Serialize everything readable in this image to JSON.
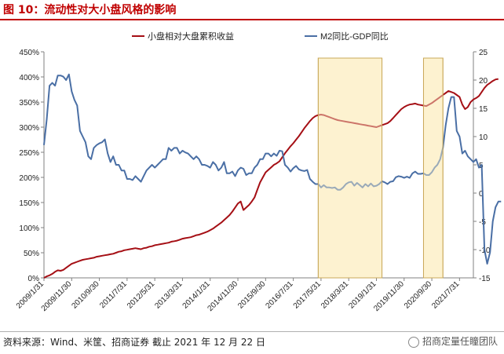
{
  "figure": {
    "title": "图 10：流动性对大小盘风格的影响",
    "source": "资料来源：Wind、米筐、招商证券 截止 2021 年 12 月 22 日",
    "watermark": "招商定量任瞳团队"
  },
  "colors": {
    "title": "#c00000",
    "smallcap": "#a50f15",
    "m2": "#4a6fa5",
    "highlight_fill": "#fdf2d0",
    "highlight_stroke": "#c9a85a"
  },
  "chart_data": {
    "type": "line",
    "x_tick_labels": [
      "2009/1/31",
      "2009/11/30",
      "2010/9/30",
      "2011/7/31",
      "2012/5/31",
      "2013/3/31",
      "2014/1/31",
      "2014/11/30",
      "2015/9/30",
      "2016/7/31",
      "2017/5/31",
      "2018/3/31",
      "2019/1/31",
      "2019/11/30",
      "2020/9/30",
      "2021/7/31"
    ],
    "y_left": {
      "ticks": [
        "0%",
        "50%",
        "100%",
        "150%",
        "200%",
        "250%",
        "300%",
        "350%",
        "400%",
        "450%"
      ],
      "min": 0,
      "max": 450
    },
    "y_right": {
      "ticks": [
        "-15",
        "-10",
        "-5",
        "0",
        "5",
        "10",
        "15",
        "20",
        "25"
      ],
      "min": -15,
      "max": 25
    },
    "highlight_periods": [
      {
        "start": "2017/4",
        "end": "2019/3"
      },
      {
        "start": "2020/6",
        "end": "2021/1"
      }
    ],
    "series": [
      {
        "name": "小盘相对大盘累积收益",
        "axis": "left",
        "x_start": "2009/1",
        "values": [
          0,
          3,
          5,
          8,
          12,
          15,
          14,
          16,
          20,
          24,
          28,
          30,
          32,
          34,
          36,
          37,
          38,
          39,
          40,
          42,
          43,
          44,
          45,
          46,
          47,
          48,
          50,
          52,
          53,
          55,
          56,
          57,
          58,
          59,
          58,
          57,
          59,
          60,
          62,
          63,
          65,
          66,
          67,
          68,
          69,
          70,
          72,
          73,
          74,
          76,
          78,
          79,
          80,
          81,
          83,
          85,
          86,
          88,
          90,
          92,
          95,
          98,
          102,
          106,
          110,
          115,
          120,
          125,
          132,
          140,
          148,
          152,
          135,
          140,
          145,
          152,
          160,
          175,
          190,
          200,
          210,
          215,
          220,
          225,
          228,
          232,
          240,
          248,
          255,
          262,
          268,
          275,
          282,
          290,
          298,
          305,
          312,
          318,
          322,
          324,
          325,
          324,
          322,
          320,
          318,
          316,
          314,
          313,
          312,
          311,
          310,
          309,
          308,
          307,
          306,
          305,
          304,
          303,
          302,
          301,
          300,
          302,
          304,
          306,
          308,
          312,
          318,
          324,
          330,
          336,
          340,
          343,
          345,
          346,
          347,
          345,
          344,
          343,
          342,
          345,
          348,
          352,
          356,
          360,
          364,
          368,
          372,
          370,
          368,
          364,
          360,
          345,
          336,
          340,
          350,
          355,
          358,
          362,
          370,
          378,
          384,
          388,
          392,
          395,
          396
        ]
      },
      {
        "name": "M2同比-GDP同比",
        "axis": "right",
        "x_start": "2009/1",
        "values": [
          8.5,
          13,
          19,
          19.5,
          19,
          20.8,
          20.8,
          20.6,
          20,
          21,
          18,
          16.5,
          15.5,
          11,
          10,
          9,
          6.5,
          6,
          8,
          8.5,
          8.8,
          9,
          9.5,
          7,
          5.5,
          6.5,
          5,
          5,
          4,
          4,
          2.5,
          2.5,
          2.3,
          3,
          2.5,
          2,
          3,
          4,
          4.5,
          5,
          4.5,
          5,
          5.5,
          6,
          6,
          8,
          7.5,
          8,
          8,
          7,
          7.5,
          7.2,
          7,
          6.5,
          6,
          6.5,
          6,
          5,
          5,
          4.8,
          4.5,
          5.5,
          5,
          4,
          4.5,
          5.5,
          3.5,
          3.5,
          3.8,
          3,
          4,
          4.5,
          4.3,
          3.2,
          3.5,
          3.5,
          4.5,
          5,
          6,
          6,
          7,
          7,
          6.5,
          7,
          6.6,
          7.5,
          7.4,
          5,
          4.5,
          3.8,
          4.4,
          4.8,
          4.2,
          4,
          3.9,
          4.1,
          2.5,
          2,
          1.6,
          1.6,
          1,
          1.4,
          1,
          1,
          0.9,
          1,
          0.6,
          0.6,
          1,
          1.6,
          1.9,
          2,
          1.3,
          1.8,
          1.4,
          1,
          1.6,
          1.2,
          1.7,
          1.2,
          1.3,
          1.6,
          2.1,
          1.9,
          1.6,
          2,
          2.1,
          2.8,
          3,
          2.9,
          2.7,
          2.9,
          2.7,
          3.5,
          3.8,
          3.4,
          3.4,
          3.5,
          3.2,
          3.2,
          3.7,
          4.5,
          5,
          6,
          8,
          12,
          15,
          17,
          17,
          11,
          10,
          7,
          7.5,
          6.5,
          6,
          5.5,
          6,
          4.5,
          5,
          -10,
          -12.5,
          -10.5,
          -5,
          -2.5,
          -1.5,
          -1.5
        ]
      }
    ],
    "legend": {
      "position": "top"
    },
    "grid": false
  }
}
